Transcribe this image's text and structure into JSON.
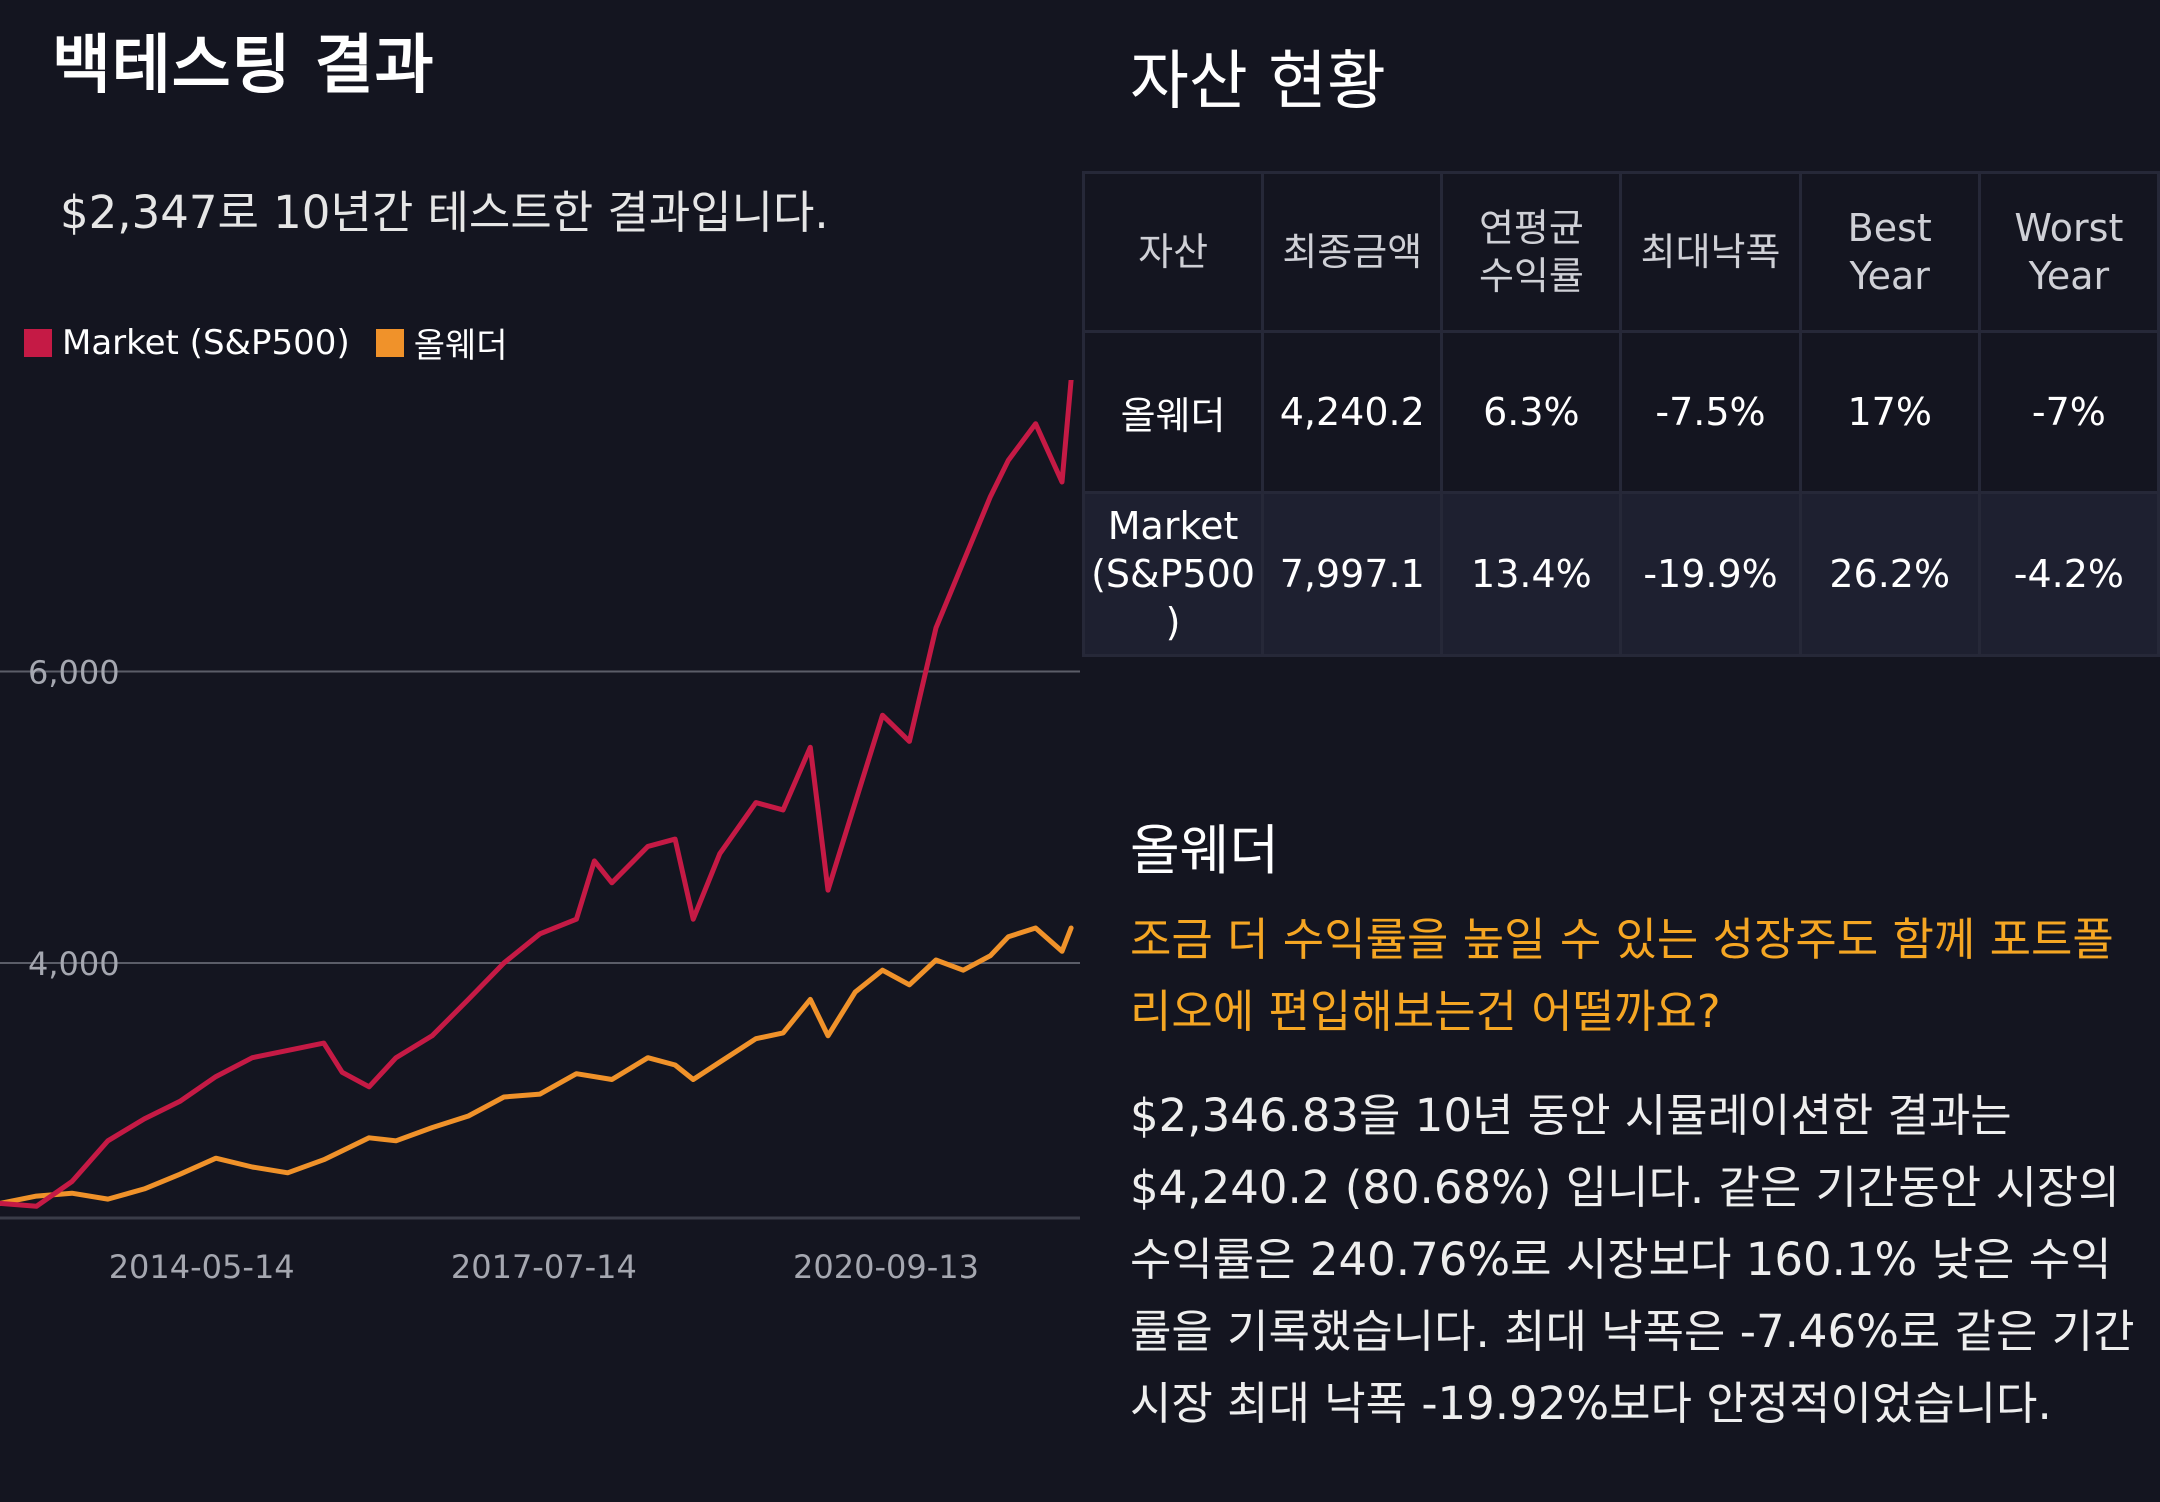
{
  "backtest": {
    "title": "백테스팅 결과",
    "subtitle": "$2,347로 10년간 테스트한 결과입니다."
  },
  "chart_data": {
    "type": "line",
    "title": "",
    "xlabel": "",
    "ylabel": "",
    "x_ticks": [
      "2014-05-14",
      "2017-07-14",
      "2020-09-13"
    ],
    "y_ticks": [
      4000,
      6000
    ],
    "y_tick_labels": [
      "4,000",
      "6,000"
    ],
    "ylim": [
      2250,
      8000
    ],
    "xlim": [
      "2012-07-01",
      "2022-07-01"
    ],
    "grid": "horizontal",
    "legend_position": "top-left",
    "series": [
      {
        "name": "Market (S&P500)",
        "color": "#c51a45",
        "x": [
          "2012-07",
          "2012-11",
          "2013-03",
          "2013-07",
          "2013-11",
          "2014-03",
          "2014-07",
          "2014-11",
          "2015-03",
          "2015-07",
          "2015-09",
          "2015-12",
          "2016-03",
          "2016-07",
          "2016-11",
          "2017-03",
          "2017-07",
          "2017-11",
          "2018-01",
          "2018-03",
          "2018-07",
          "2018-10",
          "2018-12",
          "2019-03",
          "2019-07",
          "2019-10",
          "2020-01",
          "2020-03",
          "2020-06",
          "2020-09",
          "2020-12",
          "2021-03",
          "2021-06",
          "2021-09",
          "2021-11",
          "2022-02",
          "2022-05",
          "2022-06"
        ],
        "values": [
          2350,
          2330,
          2500,
          2780,
          2930,
          3050,
          3220,
          3350,
          3400,
          3450,
          3250,
          3150,
          3350,
          3500,
          3750,
          4000,
          4200,
          4300,
          4700,
          4550,
          4800,
          4850,
          4300,
          4750,
          5100,
          5050,
          5480,
          4500,
          5100,
          5700,
          5520,
          6300,
          6750,
          7200,
          7450,
          7700,
          7300,
          8000
        ]
      },
      {
        "name": "올웨더",
        "color": "#f0922a",
        "x": [
          "2012-07",
          "2012-11",
          "2013-03",
          "2013-07",
          "2013-11",
          "2014-03",
          "2014-07",
          "2014-11",
          "2015-03",
          "2015-07",
          "2015-12",
          "2016-03",
          "2016-07",
          "2016-11",
          "2017-03",
          "2017-07",
          "2017-11",
          "2018-03",
          "2018-07",
          "2018-10",
          "2018-12",
          "2019-03",
          "2019-07",
          "2019-10",
          "2020-01",
          "2020-03",
          "2020-06",
          "2020-09",
          "2020-12",
          "2021-03",
          "2021-06",
          "2021-09",
          "2021-11",
          "2022-02",
          "2022-05",
          "2022-06"
        ],
        "values": [
          2350,
          2400,
          2420,
          2380,
          2450,
          2550,
          2660,
          2600,
          2560,
          2650,
          2800,
          2780,
          2870,
          2950,
          3080,
          3100,
          3240,
          3200,
          3350,
          3300,
          3200,
          3320,
          3480,
          3520,
          3750,
          3500,
          3800,
          3950,
          3850,
          4020,
          3950,
          4050,
          4180,
          4240,
          4080,
          4240
        ]
      }
    ]
  },
  "assets": {
    "title": "자산 현황",
    "headers": [
      "자산",
      "최종금액",
      "연평균\n수익률",
      "최대낙폭",
      "Best\nYear",
      "Worst\nYear"
    ],
    "rows": [
      [
        "올웨더",
        "4,240.2",
        "6.3%",
        "-7.5%",
        "17%",
        "-7%"
      ],
      [
        "Market\n(S&P500\n)",
        "7,997.1",
        "13.4%",
        "-19.9%",
        "26.2%",
        "-4.2%"
      ]
    ]
  },
  "summary": {
    "title": "올웨더",
    "highlight": "조금 더 수익률을 높일 수 있는 성장주도 함께 포트폴리오에 편입해보는건 어떨까요?",
    "description": "$2,346.83을 10년 동안 시뮬레이션한 결과는 $4,240.2 (80.68%) 입니다. 같은 기간동안 시장의 수익률은 240.76%로 시장보다 160.1% 낮은 수익률을 기록했습니다. 최대 낙폭은 -7.46%로 같은 기간 시장 최대 낙폭 -19.92%보다 안정적이었습니다."
  }
}
